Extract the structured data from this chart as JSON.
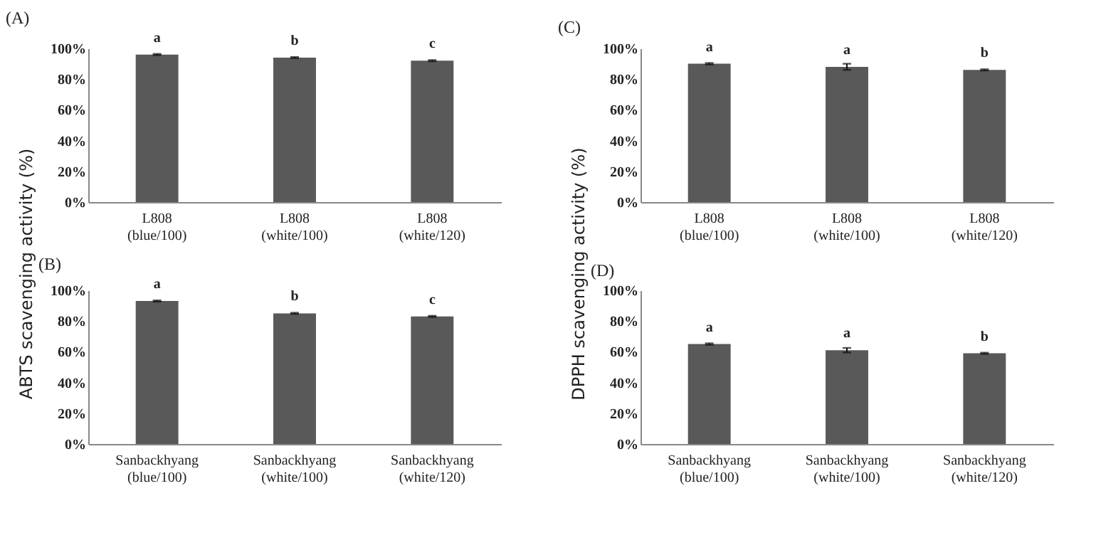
{
  "chart_data": [
    {
      "type": "bar",
      "title": "(A)",
      "ylabel": "ABTS scavenging activity (%)",
      "categories": [
        "L808\n(blue/100)",
        "L808\n(white/100)",
        "L808\n(white/120)"
      ],
      "values": [
        96,
        94,
        92
      ],
      "errors": [
        0.4,
        0.4,
        0.4
      ],
      "color": "#595959",
      "ylim": [
        0,
        100
      ],
      "yticks": [
        {
          "value": 0,
          "label": "0%"
        },
        {
          "value": 20,
          "label": "20%"
        },
        {
          "value": 40,
          "label": "40%"
        },
        {
          "value": 60,
          "label": "60%"
        },
        {
          "value": 80,
          "label": "80%"
        },
        {
          "value": 100,
          "label": "100%"
        }
      ],
      "grid": false,
      "annotations": [
        {
          "text": "a",
          "x": "L808\n(blue/100)",
          "y": 96
        },
        {
          "text": "b",
          "x": "L808\n(white/100)",
          "y": 94
        },
        {
          "text": "c",
          "x": "L808\n(white/120)",
          "y": 92
        }
      ]
    },
    {
      "type": "bar",
      "title": "(B)",
      "categories": [
        "Sanbackhyang\n(blue/100)",
        "Sanbackhyang\n(white/100)",
        "Sanbackhyang\n(white/120)"
      ],
      "values": [
        93,
        85,
        83
      ],
      "errors": [
        0.4,
        0.4,
        0.4
      ],
      "color": "#595959",
      "ylim": [
        0,
        100
      ],
      "yticks": [
        {
          "value": 0,
          "label": "0%"
        },
        {
          "value": 20,
          "label": "20%"
        },
        {
          "value": 40,
          "label": "40%"
        },
        {
          "value": 60,
          "label": "60%"
        },
        {
          "value": 80,
          "label": "80%"
        },
        {
          "value": 100,
          "label": "100%"
        }
      ],
      "grid": false,
      "annotations": [
        {
          "text": "a",
          "x": "Sanbackhyang\n(blue/100)",
          "y": 93
        },
        {
          "text": "b",
          "x": "Sanbackhyang\n(white/100)",
          "y": 85
        },
        {
          "text": "c",
          "x": "Sanbackhyang\n(white/120)",
          "y": 83
        }
      ]
    },
    {
      "type": "bar",
      "title": "(C)",
      "ylabel": "DPPH scavenging activity (%)",
      "categories": [
        "L808\n(blue/100)",
        "L808\n(white/100)",
        "L808\n(white/120)"
      ],
      "values": [
        90,
        88,
        86
      ],
      "errors": [
        0.5,
        2,
        0.4
      ],
      "color": "#595959",
      "ylim": [
        0,
        100
      ],
      "yticks": [
        {
          "value": 0,
          "label": "0%"
        },
        {
          "value": 20,
          "label": "20%"
        },
        {
          "value": 40,
          "label": "40%"
        },
        {
          "value": 60,
          "label": "60%"
        },
        {
          "value": 80,
          "label": "80%"
        },
        {
          "value": 100,
          "label": "100%"
        }
      ],
      "grid": false,
      "annotations": [
        {
          "text": "a",
          "x": "L808\n(blue/100)",
          "y": 90
        },
        {
          "text": "a",
          "x": "L808\n(white/100)",
          "y": 88
        },
        {
          "text": "b",
          "x": "L808\n(white/120)",
          "y": 86
        }
      ]
    },
    {
      "type": "bar",
      "title": "(D)",
      "categories": [
        "Sanbackhyang\n(blue/100)",
        "Sanbackhyang\n(white/100)",
        "Sanbackhyang\n(white/120)"
      ],
      "values": [
        65,
        61,
        59
      ],
      "errors": [
        0.5,
        1.5,
        0.4
      ],
      "color": "#595959",
      "ylim": [
        0,
        100
      ],
      "yticks": [
        {
          "value": 0,
          "label": "0%"
        },
        {
          "value": 20,
          "label": "20%"
        },
        {
          "value": 40,
          "label": "40%"
        },
        {
          "value": 60,
          "label": "60%"
        },
        {
          "value": 80,
          "label": "80%"
        },
        {
          "value": 100,
          "label": "100%"
        }
      ],
      "grid": false,
      "annotations": [
        {
          "text": "a",
          "x": "Sanbackhyang\n(blue/100)",
          "y": 65
        },
        {
          "text": "a",
          "x": "Sanbackhyang\n(white/100)",
          "y": 61
        },
        {
          "text": "b",
          "x": "Sanbackhyang\n(white/120)",
          "y": 59
        }
      ]
    }
  ]
}
